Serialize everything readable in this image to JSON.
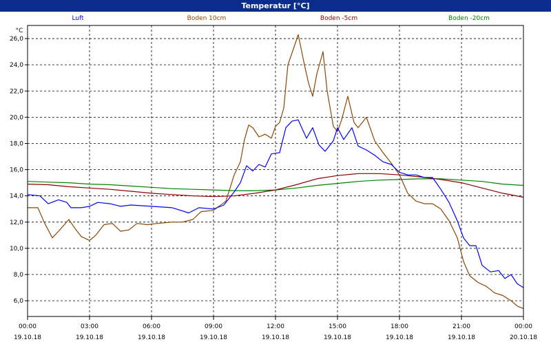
{
  "window": {
    "title": "Temperatur [°C]"
  },
  "chart_data": {
    "type": "line",
    "title": "Temperatur [°C]",
    "ylabel": "°C",
    "ylim": [
      4.8,
      27.0
    ],
    "xlim_hours": [
      0,
      24
    ],
    "grid": true,
    "legend_placement": "top",
    "y_ticks": [
      "6,0",
      "8,0",
      "10,0",
      "12,0",
      "14,0",
      "16,0",
      "18,0",
      "20,0",
      "22,0",
      "24,0",
      "26,0"
    ],
    "x_ticks": [
      {
        "time": "00:00",
        "date": "19.10.18"
      },
      {
        "time": "03:00",
        "date": "19.10.18"
      },
      {
        "time": "06:00",
        "date": "19.10.18"
      },
      {
        "time": "09:00",
        "date": "19.10.18"
      },
      {
        "time": "12:00",
        "date": "19.10.18"
      },
      {
        "time": "15:00",
        "date": "19.10.18"
      },
      {
        "time": "18:00",
        "date": "19.10.18"
      },
      {
        "time": "21:00",
        "date": "19.10.18"
      },
      {
        "time": "00:00",
        "date": "20.10.18"
      }
    ],
    "series": [
      {
        "name": "Luft",
        "color": "#0000ff",
        "points": [
          [
            0,
            14.1
          ],
          [
            0.6,
            14.0
          ],
          [
            1.0,
            13.4
          ],
          [
            1.5,
            13.7
          ],
          [
            1.9,
            13.5
          ],
          [
            2.1,
            13.1
          ],
          [
            2.6,
            13.1
          ],
          [
            3.0,
            13.2
          ],
          [
            3.4,
            13.5
          ],
          [
            4.0,
            13.4
          ],
          [
            4.5,
            13.2
          ],
          [
            5.0,
            13.3
          ],
          [
            6.0,
            13.2
          ],
          [
            7.0,
            13.1
          ],
          [
            7.8,
            12.7
          ],
          [
            8.3,
            13.1
          ],
          [
            9.0,
            13.0
          ],
          [
            9.5,
            13.3
          ],
          [
            10.0,
            14.3
          ],
          [
            10.3,
            15.0
          ],
          [
            10.6,
            16.3
          ],
          [
            10.9,
            15.9
          ],
          [
            11.2,
            16.4
          ],
          [
            11.5,
            16.2
          ],
          [
            11.8,
            17.2
          ],
          [
            12.2,
            17.3
          ],
          [
            12.5,
            19.2
          ],
          [
            12.8,
            19.7
          ],
          [
            13.1,
            19.8
          ],
          [
            13.5,
            18.4
          ],
          [
            13.8,
            19.2
          ],
          [
            14.1,
            17.9
          ],
          [
            14.4,
            17.4
          ],
          [
            14.8,
            18.2
          ],
          [
            15.0,
            19.2
          ],
          [
            15.3,
            18.3
          ],
          [
            15.7,
            19.2
          ],
          [
            16.0,
            17.8
          ],
          [
            16.4,
            17.5
          ],
          [
            16.8,
            17.1
          ],
          [
            17.2,
            16.6
          ],
          [
            17.6,
            16.4
          ],
          [
            18.0,
            15.8
          ],
          [
            18.4,
            15.6
          ],
          [
            18.8,
            15.6
          ],
          [
            19.2,
            15.4
          ],
          [
            19.6,
            15.4
          ],
          [
            20.0,
            14.5
          ],
          [
            20.4,
            13.5
          ],
          [
            20.8,
            12.1
          ],
          [
            21.1,
            10.8
          ],
          [
            21.4,
            10.2
          ],
          [
            21.7,
            10.2
          ],
          [
            22.0,
            8.7
          ],
          [
            22.4,
            8.2
          ],
          [
            22.8,
            8.3
          ],
          [
            23.1,
            7.7
          ],
          [
            23.4,
            8.0
          ],
          [
            23.7,
            7.3
          ],
          [
            24.0,
            7.0
          ]
        ]
      },
      {
        "name": "Boden 10cm",
        "color": "#8b4500",
        "points": [
          [
            0,
            13.1
          ],
          [
            0.5,
            13.1
          ],
          [
            0.8,
            12.0
          ],
          [
            1.2,
            10.8
          ],
          [
            1.5,
            11.3
          ],
          [
            2.0,
            12.2
          ],
          [
            2.3,
            11.5
          ],
          [
            2.6,
            10.9
          ],
          [
            3.0,
            10.6
          ],
          [
            3.3,
            11.0
          ],
          [
            3.7,
            11.8
          ],
          [
            4.1,
            11.9
          ],
          [
            4.5,
            11.3
          ],
          [
            4.9,
            11.4
          ],
          [
            5.3,
            11.9
          ],
          [
            5.8,
            11.8
          ],
          [
            6.3,
            11.9
          ],
          [
            7.0,
            12.0
          ],
          [
            7.5,
            12.0
          ],
          [
            8.0,
            12.2
          ],
          [
            8.4,
            12.8
          ],
          [
            9.0,
            12.9
          ],
          [
            9.6,
            13.6
          ],
          [
            10.0,
            15.6
          ],
          [
            10.3,
            16.6
          ],
          [
            10.5,
            18.3
          ],
          [
            10.7,
            19.4
          ],
          [
            10.9,
            19.2
          ],
          [
            11.2,
            18.5
          ],
          [
            11.5,
            18.7
          ],
          [
            11.8,
            18.4
          ],
          [
            12.0,
            19.3
          ],
          [
            12.2,
            19.6
          ],
          [
            12.4,
            20.7
          ],
          [
            12.6,
            24.0
          ],
          [
            12.8,
            24.9
          ],
          [
            13.1,
            26.3
          ],
          [
            13.4,
            24.0
          ],
          [
            13.6,
            22.6
          ],
          [
            13.8,
            21.6
          ],
          [
            14.0,
            23.3
          ],
          [
            14.3,
            25.0
          ],
          [
            14.5,
            22.0
          ],
          [
            14.8,
            19.3
          ],
          [
            15.0,
            18.9
          ],
          [
            15.2,
            19.8
          ],
          [
            15.5,
            21.6
          ],
          [
            15.8,
            19.6
          ],
          [
            16.0,
            19.2
          ],
          [
            16.4,
            20.0
          ],
          [
            16.8,
            18.2
          ],
          [
            17.2,
            17.3
          ],
          [
            17.6,
            16.5
          ],
          [
            18.0,
            15.6
          ],
          [
            18.4,
            14.2
          ],
          [
            18.8,
            13.6
          ],
          [
            19.2,
            13.4
          ],
          [
            19.6,
            13.4
          ],
          [
            20.0,
            13.0
          ],
          [
            20.4,
            12.1
          ],
          [
            20.8,
            10.8
          ],
          [
            21.1,
            9.0
          ],
          [
            21.4,
            7.9
          ],
          [
            21.8,
            7.4
          ],
          [
            22.2,
            7.1
          ],
          [
            22.6,
            6.6
          ],
          [
            23.0,
            6.4
          ],
          [
            23.4,
            6.0
          ],
          [
            23.7,
            5.6
          ],
          [
            24.0,
            5.4
          ]
        ]
      },
      {
        "name": "Boden -5cm",
        "color": "#8b0000",
        "points": [
          [
            0,
            14.9
          ],
          [
            1,
            14.85
          ],
          [
            2,
            14.7
          ],
          [
            3,
            14.6
          ],
          [
            4,
            14.5
          ],
          [
            5,
            14.35
          ],
          [
            6,
            14.2
          ],
          [
            7,
            14.1
          ],
          [
            8,
            14.0
          ],
          [
            9,
            13.95
          ],
          [
            10,
            14.0
          ],
          [
            11,
            14.2
          ],
          [
            12,
            14.45
          ],
          [
            13,
            14.85
          ],
          [
            14,
            15.3
          ],
          [
            15,
            15.55
          ],
          [
            16,
            15.7
          ],
          [
            17,
            15.7
          ],
          [
            18,
            15.6
          ],
          [
            19,
            15.45
          ],
          [
            20,
            15.25
          ],
          [
            21,
            15.0
          ],
          [
            22,
            14.6
          ],
          [
            23,
            14.2
          ],
          [
            24,
            13.9
          ]
        ]
      },
      {
        "name": "Boden -20cm",
        "color": "#008000",
        "points": [
          [
            0,
            15.1
          ],
          [
            1,
            15.05
          ],
          [
            2,
            15.0
          ],
          [
            3,
            14.9
          ],
          [
            4,
            14.85
          ],
          [
            5,
            14.75
          ],
          [
            6,
            14.65
          ],
          [
            7,
            14.55
          ],
          [
            8,
            14.5
          ],
          [
            9,
            14.45
          ],
          [
            10,
            14.4
          ],
          [
            11,
            14.4
          ],
          [
            12,
            14.45
          ],
          [
            13,
            14.6
          ],
          [
            14,
            14.8
          ],
          [
            15,
            14.95
          ],
          [
            16,
            15.1
          ],
          [
            17,
            15.2
          ],
          [
            18,
            15.25
          ],
          [
            19,
            15.3
          ],
          [
            20,
            15.3
          ],
          [
            21,
            15.2
          ],
          [
            22,
            15.1
          ],
          [
            23,
            14.9
          ],
          [
            24,
            14.8
          ]
        ]
      }
    ]
  }
}
